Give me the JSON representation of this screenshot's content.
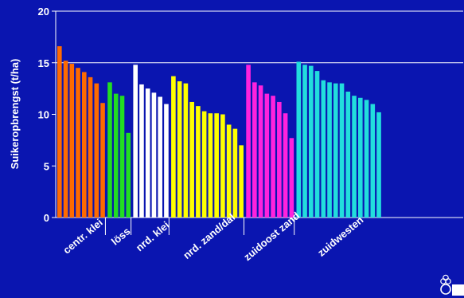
{
  "chart_data": {
    "type": "bar",
    "title": "",
    "ylabel": "Suikeropbrengst (t/ha)",
    "xlabel": "",
    "ylim": [
      0,
      20
    ],
    "yticks": [
      "0",
      "5",
      "10",
      "15",
      "20"
    ],
    "gridlines": [
      15,
      20
    ],
    "groups": [
      {
        "name": "centr. klei",
        "color": "#ff6a00",
        "values": [
          16.6,
          15.2,
          14.9,
          14.5,
          14.1,
          13.6,
          13.0,
          11.1
        ]
      },
      {
        "name": "löss",
        "color": "#22dd22",
        "values": [
          13.1,
          12.0,
          11.8,
          8.2
        ]
      },
      {
        "name": "nrd. klei",
        "color": "#ffffff",
        "values": [
          14.8,
          12.9,
          12.5,
          12.1,
          11.7,
          11.0
        ]
      },
      {
        "name": "nrd. zand/dal",
        "color": "#ffff00",
        "values": [
          13.7,
          13.2,
          13.0,
          11.2,
          10.8,
          10.3,
          10.1,
          10.1,
          10.0,
          9.0,
          8.6,
          7.0
        ]
      },
      {
        "name": "zuidoost zand",
        "color": "#ff22dd",
        "values": [
          14.8,
          13.1,
          12.8,
          12.0,
          11.8,
          11.2,
          10.1,
          7.7
        ]
      },
      {
        "name": "zuidwesten",
        "color": "#22dddd",
        "values": [
          15.1,
          14.8,
          14.7,
          14.2,
          13.3,
          13.1,
          13.0,
          13.0,
          12.2,
          11.8,
          11.6,
          11.4,
          11.0,
          10.2
        ]
      }
    ]
  },
  "logo": {
    "icon": "company-logo-icon"
  }
}
